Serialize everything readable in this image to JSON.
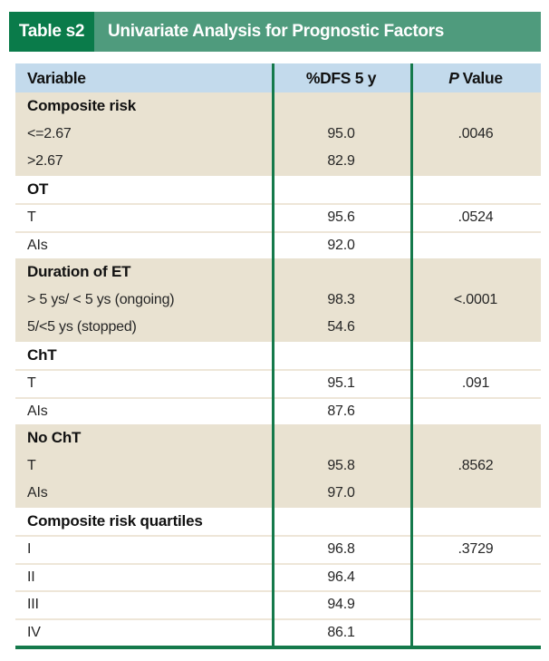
{
  "banner": {
    "tag": "Table s2",
    "title": "Univariate Analysis for Prognostic Factors"
  },
  "table": {
    "columns": {
      "variable": "Variable",
      "dfs": "%DFS 5 y",
      "p_italic": "P",
      "p_rest": "Value"
    },
    "rows": [
      {
        "label": "Composite risk",
        "dfs": "",
        "p": "",
        "bold": true,
        "shade": "beige"
      },
      {
        "label": "<=2.67",
        "dfs": "95.0",
        "p": ".0046",
        "bold": false,
        "shade": "beige"
      },
      {
        "label": ">2.67",
        "dfs": "82.9",
        "p": "",
        "bold": false,
        "shade": "beige"
      },
      {
        "label": "OT",
        "dfs": "",
        "p": "",
        "bold": true,
        "shade": "white"
      },
      {
        "label": "T",
        "dfs": "95.6",
        "p": ".0524",
        "bold": false,
        "shade": "white"
      },
      {
        "label": "AIs",
        "dfs": "92.0",
        "p": "",
        "bold": false,
        "shade": "white"
      },
      {
        "label": "Duration of ET",
        "dfs": "",
        "p": "",
        "bold": true,
        "shade": "beige"
      },
      {
        "label": "> 5 ys/ < 5 ys (ongoing)",
        "dfs": "98.3",
        "p": "<.0001",
        "bold": false,
        "shade": "beige"
      },
      {
        "label": "5/<5 ys (stopped)",
        "dfs": "54.6",
        "p": "",
        "bold": false,
        "shade": "beige"
      },
      {
        "label": "ChT",
        "dfs": "",
        "p": "",
        "bold": true,
        "shade": "white"
      },
      {
        "label": "T",
        "dfs": "95.1",
        "p": ".091",
        "bold": false,
        "shade": "white"
      },
      {
        "label": "AIs",
        "dfs": "87.6",
        "p": "",
        "bold": false,
        "shade": "white"
      },
      {
        "label": "No ChT",
        "dfs": "",
        "p": "",
        "bold": true,
        "shade": "beige"
      },
      {
        "label": "T",
        "dfs": "95.8",
        "p": ".8562",
        "bold": false,
        "shade": "beige"
      },
      {
        "label": "AIs",
        "dfs": "97.0",
        "p": "",
        "bold": false,
        "shade": "beige"
      },
      {
        "label": "Composite risk quartiles",
        "dfs": "",
        "p": "",
        "bold": true,
        "shade": "white"
      },
      {
        "label": "I",
        "dfs": "96.8",
        "p": ".3729",
        "bold": false,
        "shade": "white"
      },
      {
        "label": "II",
        "dfs": "96.4",
        "p": "",
        "bold": false,
        "shade": "white"
      },
      {
        "label": "III",
        "dfs": "94.9",
        "p": "",
        "bold": false,
        "shade": "white"
      },
      {
        "label": "IV",
        "dfs": "86.1",
        "p": "",
        "bold": false,
        "shade": "white"
      }
    ]
  },
  "colors": {
    "banner_dark_green": "#0a7b4a",
    "banner_green": "#4f9b7d",
    "header_blue": "#c3daec",
    "row_beige": "#e9e2d1",
    "line_green": "#15794b",
    "separator_beige": "#eee6d8",
    "title_text": "#ffffff"
  }
}
